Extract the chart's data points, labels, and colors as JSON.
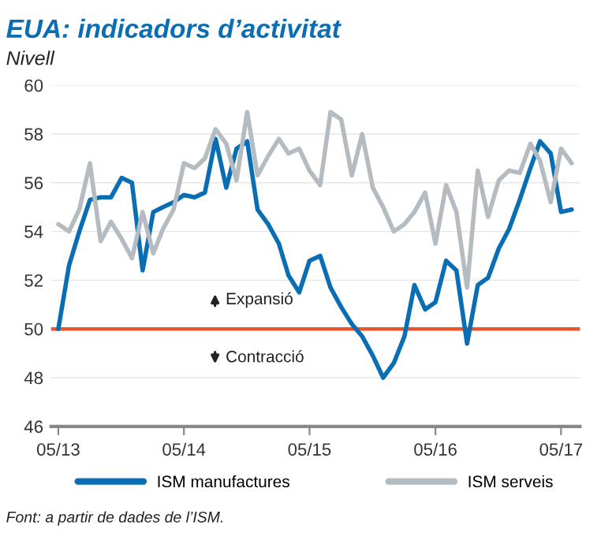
{
  "chart_data": {
    "type": "line",
    "title": "EUA: indicadors d’activitat",
    "subtitle": "Nivell",
    "x": [
      "2013-05",
      "2013-06",
      "2013-07",
      "2013-08",
      "2013-09",
      "2013-10",
      "2013-11",
      "2013-12",
      "2014-01",
      "2014-02",
      "2014-03",
      "2014-04",
      "2014-05",
      "2014-06",
      "2014-07",
      "2014-08",
      "2014-09",
      "2014-10",
      "2014-11",
      "2014-12",
      "2015-01",
      "2015-02",
      "2015-03",
      "2015-04",
      "2015-05",
      "2015-06",
      "2015-07",
      "2015-08",
      "2015-09",
      "2015-10",
      "2015-11",
      "2015-12",
      "2016-01",
      "2016-02",
      "2016-03",
      "2016-04",
      "2016-05",
      "2016-06",
      "2016-07",
      "2016-08",
      "2016-09",
      "2016-10",
      "2016-11",
      "2016-12",
      "2017-01",
      "2017-02",
      "2017-03",
      "2017-04",
      "2017-05",
      "2017-06"
    ],
    "series": [
      {
        "name": "ISM manufactures",
        "color": "#0a6eb4",
        "values": [
          50.0,
          52.6,
          54.0,
          55.3,
          55.4,
          55.4,
          56.2,
          56.0,
          52.4,
          54.8,
          55.0,
          55.2,
          55.5,
          55.4,
          55.6,
          57.8,
          55.8,
          57.4,
          57.7,
          54.9,
          54.3,
          53.5,
          52.2,
          51.5,
          52.8,
          53.0,
          51.7,
          50.9,
          50.2,
          49.7,
          48.9,
          48.0,
          48.6,
          49.7,
          51.8,
          50.8,
          51.1,
          52.8,
          52.4,
          49.4,
          51.8,
          52.1,
          53.3,
          54.1,
          55.3,
          56.6,
          57.7,
          57.2,
          54.8,
          54.9
        ]
      },
      {
        "name": "ISM serveis",
        "color": "#b4bcc2",
        "values": [
          54.3,
          54.0,
          54.9,
          56.8,
          53.6,
          54.4,
          53.7,
          52.9,
          54.8,
          53.1,
          54.1,
          54.9,
          56.8,
          56.6,
          57.0,
          58.2,
          57.6,
          56.1,
          58.9,
          56.3,
          57.1,
          57.8,
          57.2,
          57.4,
          56.5,
          55.9,
          58.9,
          58.6,
          56.3,
          58.0,
          55.8,
          55.0,
          54.0,
          54.3,
          54.8,
          55.6,
          53.5,
          55.9,
          54.8,
          51.7,
          56.5,
          54.6,
          56.1,
          56.5,
          56.4,
          57.6,
          56.9,
          55.2,
          57.4,
          56.8
        ]
      }
    ],
    "xlim": [
      "2013-04-10",
      "2017-06-25"
    ],
    "xticks": [
      {
        "value": "2013-05",
        "label": "05/13"
      },
      {
        "value": "2014-05",
        "label": "05/14"
      },
      {
        "value": "2015-05",
        "label": "05/15"
      },
      {
        "value": "2016-05",
        "label": "05/16"
      },
      {
        "value": "2017-05",
        "label": "05/17"
      }
    ],
    "ylim": [
      46,
      60
    ],
    "yticks": [
      46,
      48,
      50,
      52,
      54,
      56,
      58,
      60
    ],
    "ref_lines": [
      {
        "axis": "y",
        "value": 50,
        "color": "#e8562a"
      }
    ],
    "annotations": [
      "Expansió",
      "Contracció",
      "Font: a partir de dades de l’ISM."
    ],
    "grid": "y",
    "legend": "bottom",
    "marker": "none",
    "line_style": "solid"
  }
}
